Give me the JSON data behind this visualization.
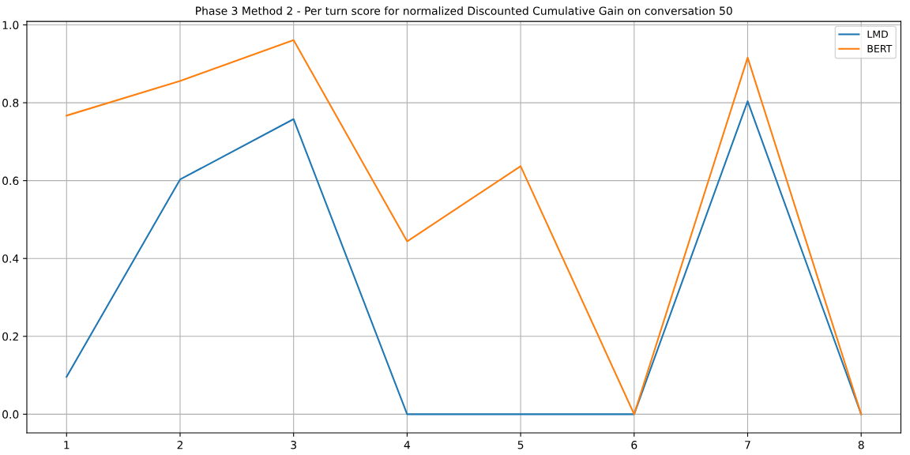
{
  "chart_data": {
    "type": "line",
    "title": "Phase 3 Method 2 - Per turn score for normalized Discounted Cumulative Gain on conversation 50",
    "x": [
      1,
      2,
      3,
      4,
      5,
      6,
      7,
      8
    ],
    "series": [
      {
        "name": "LMD",
        "color": "#1f77b4",
        "values": [
          0.096,
          0.603,
          0.758,
          0,
          0,
          0,
          0.804,
          0
        ]
      },
      {
        "name": "BERT",
        "color": "#ff7f0e",
        "values": [
          0.767,
          0.856,
          0.961,
          0.444,
          0.637,
          0,
          0.916,
          0
        ]
      }
    ],
    "xlim": [
      0.65,
      8.35
    ],
    "xticks": [
      1,
      2,
      3,
      4,
      5,
      6,
      7,
      8
    ],
    "ylim": [
      -0.048,
      1.009
    ],
    "yticks": [
      {
        "value": 0,
        "label": "0.0"
      },
      {
        "value": 0.2,
        "label": "0.2"
      },
      {
        "value": 0.4,
        "label": "0.4"
      },
      {
        "value": 0.6,
        "label": "0.6"
      },
      {
        "value": 0.8,
        "label": "0.8"
      },
      {
        "value": 1,
        "label": "1.0"
      }
    ],
    "grid": true,
    "legend": "top right",
    "marker": "none",
    "line_style": "solid"
  }
}
